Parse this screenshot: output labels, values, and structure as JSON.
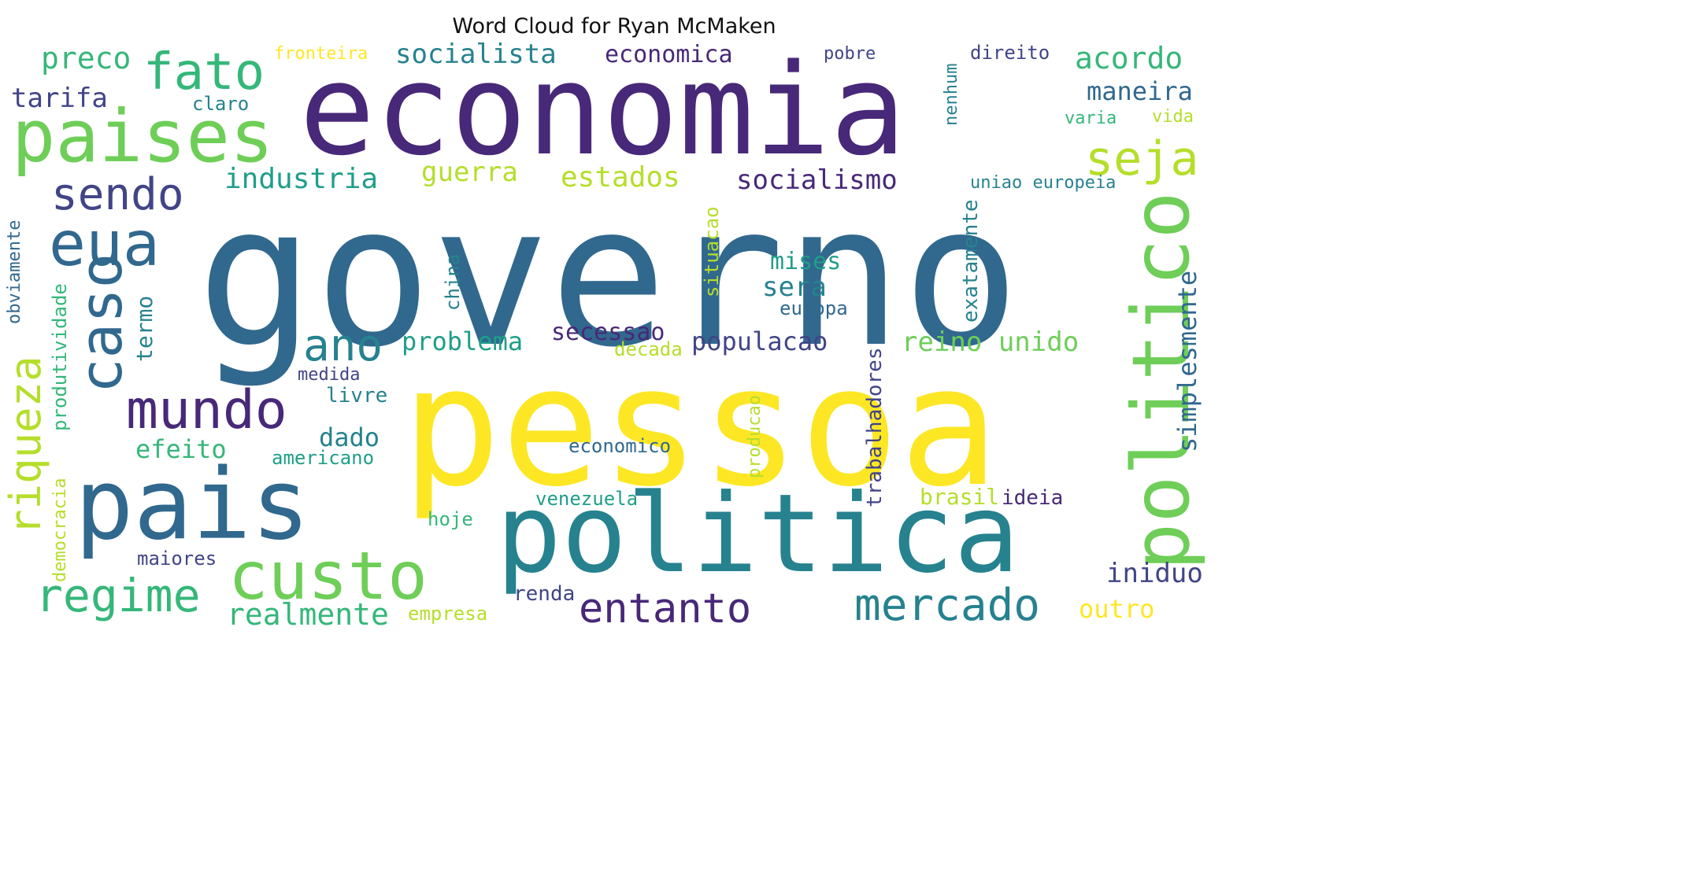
{
  "title": "Word Cloud for Ryan McMaken",
  "palette": {
    "dark_purple": "#482878",
    "purple": "#414487",
    "blue": "#31688e",
    "teal": "#26828e",
    "green_teal": "#1f9e89",
    "green": "#35b779",
    "light_green": "#6ece58",
    "yellow_green": "#b5de2b",
    "yellow": "#fde725"
  },
  "words": [
    "governo",
    "pessoa",
    "economia",
    "politica",
    "pais",
    "politico",
    "custo",
    "paises",
    "caso",
    "mercado",
    "mundo",
    "entanto",
    "eua",
    "regime",
    "fato",
    "riqueza",
    "sendo",
    "seja",
    "ano",
    "realmente",
    "acordo",
    "preco",
    "socialista",
    "economica",
    "estados",
    "industria",
    "guerra",
    "socialismo",
    "problema",
    "populacao",
    "reino unido",
    "secessao",
    "simplesmente",
    "mises",
    "sera",
    "maneira",
    "outro",
    "iniduo",
    "efeito",
    "dado",
    "americano",
    "tarifa",
    "produtividade",
    "democracia",
    "exatamente",
    "trabalhadores",
    "termo",
    "situacao",
    "china",
    "europa",
    "decada",
    "economico",
    "venezuela",
    "brasil",
    "ideia",
    "hoje",
    "renda",
    "empresa",
    "maiores",
    "medida",
    "livre",
    "uniao europeia",
    "direito",
    "pobre",
    "fronteira",
    "claro",
    "varia",
    "vida",
    "nenhum",
    "obviamente",
    "producao"
  ]
}
